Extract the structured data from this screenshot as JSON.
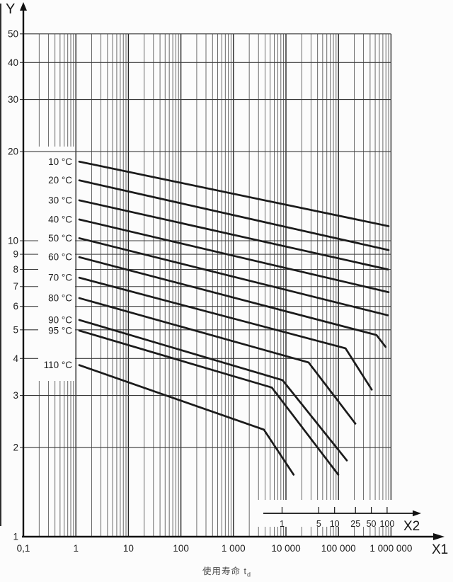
{
  "axis_labels": {
    "y": "Y",
    "x1": "X1",
    "x2": "X2"
  },
  "caption": {
    "text": "使用寿命",
    "symbol": "t",
    "subscript": "d"
  },
  "colors": {
    "background": "#fcfcfc",
    "curve": "#1b1b1b",
    "grid_minor": "#5a5a5a",
    "grid_major": "#262626",
    "grid_horizontal": "#3a3a3a",
    "axis": "#111111",
    "text": "#1d1d1d",
    "caption_text": "#4c4c4c"
  },
  "chart_data": {
    "type": "line",
    "scale": "log-log",
    "grid": "log major + minor, on",
    "title": "",
    "x_axis": {
      "label": "X1",
      "min": 0.1,
      "max": 1000000,
      "ticks": [
        {
          "value": 0.1,
          "label": "0,1"
        },
        {
          "value": 1,
          "label": "1"
        },
        {
          "value": 10,
          "label": "10"
        },
        {
          "value": 100,
          "label": "100"
        },
        {
          "value": 1000,
          "label": "1 000"
        },
        {
          "value": 10000,
          "label": "10 000"
        },
        {
          "value": 100000,
          "label": "100 000"
        },
        {
          "value": 1000000,
          "label": "1 000 000"
        }
      ]
    },
    "y_axis": {
      "label": "Y",
      "min": 1,
      "max": 50,
      "ticks": [
        {
          "value": 1,
          "label": "1"
        },
        {
          "value": 2,
          "label": "2"
        },
        {
          "value": 3,
          "label": "3"
        },
        {
          "value": 4,
          "label": "4"
        },
        {
          "value": 5,
          "label": "5"
        },
        {
          "value": 6,
          "label": "6"
        },
        {
          "value": 7,
          "label": "7"
        },
        {
          "value": 8,
          "label": "8"
        },
        {
          "value": 9,
          "label": "9"
        },
        {
          "value": 10,
          "label": "10"
        },
        {
          "value": 20,
          "label": "20"
        },
        {
          "value": 30,
          "label": "30"
        },
        {
          "value": 40,
          "label": "40"
        },
        {
          "value": 50,
          "label": "50"
        }
      ]
    },
    "x2_axis": {
      "label": "X2",
      "min": 1,
      "max": 100,
      "ticks": [
        {
          "value": 1,
          "label": "1"
        },
        {
          "value": 5,
          "label": "5"
        },
        {
          "value": 10,
          "label": "10"
        },
        {
          "value": 25,
          "label": "25"
        },
        {
          "value": 50,
          "label": "50"
        },
        {
          "value": 100,
          "label": "100"
        }
      ]
    },
    "series": [
      {
        "name": "10 °C",
        "points": [
          [
            1.16,
            18.5
          ],
          [
            900000,
            11.2
          ]
        ]
      },
      {
        "name": "20 °C",
        "points": [
          [
            1.16,
            16.0
          ],
          [
            900000,
            9.3
          ]
        ]
      },
      {
        "name": "30 °C",
        "points": [
          [
            1.16,
            13.7
          ],
          [
            870000,
            8.0
          ]
        ]
      },
      {
        "name": "40 °C",
        "points": [
          [
            1.16,
            11.8
          ],
          [
            900000,
            6.7
          ]
        ]
      },
      {
        "name": "50 °C",
        "points": [
          [
            1.16,
            10.2
          ],
          [
            870000,
            5.6
          ]
        ]
      },
      {
        "name": "60 °C",
        "points": [
          [
            1.16,
            8.8
          ],
          [
            530000,
            4.8
          ],
          [
            790000,
            4.38
          ]
        ]
      },
      {
        "name": "70 °C",
        "points": [
          [
            1.16,
            7.5
          ],
          [
            136000,
            4.33
          ],
          [
            430000,
            3.14
          ]
        ]
      },
      {
        "name": "80 °C",
        "points": [
          [
            1.16,
            6.4
          ],
          [
            27000,
            3.88
          ],
          [
            210000,
            2.41
          ]
        ]
      },
      {
        "name": "90 °C",
        "points": [
          [
            1.16,
            5.4
          ],
          [
            8600,
            3.38
          ],
          [
            144000,
            1.81
          ]
        ]
      },
      {
        "name": "95 °C",
        "points": [
          [
            1.16,
            4.97
          ],
          [
            5400,
            3.19
          ],
          [
            99000,
            1.62
          ]
        ]
      },
      {
        "name": "110 °C",
        "points": [
          [
            1.16,
            3.8
          ],
          [
            3800,
            2.3
          ],
          [
            14000,
            1.62
          ]
        ]
      }
    ],
    "caption": "使用寿命 td",
    "legend_position": "labels at left end of each curve"
  }
}
